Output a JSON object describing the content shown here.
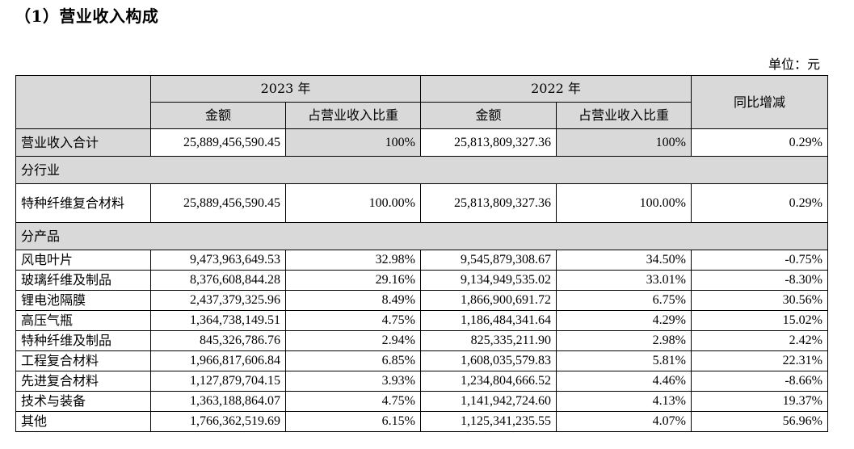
{
  "heading": "（1）营业收入构成",
  "unit_label": "单位：元",
  "header": {
    "year_2023": "2023 年",
    "year_2022": "2022 年",
    "amount": "金额",
    "ratio": "占营业收入比重",
    "yoy": "同比增减"
  },
  "total": {
    "label": "营业收入合计",
    "amount_2023": "25,889,456,590.45",
    "ratio_2023": "100%",
    "amount_2022": "25,813,809,327.36",
    "ratio_2022": "100%",
    "yoy": "0.29%"
  },
  "section_industry": "分行业",
  "industry_rows": [
    {
      "label": "特种纤维复合材料",
      "amount_2023": "25,889,456,590.45",
      "ratio_2023": "100.00%",
      "amount_2022": "25,813,809,327.36",
      "ratio_2022": "100.00%",
      "yoy": "0.29%"
    }
  ],
  "section_product": "分产品",
  "product_rows": [
    {
      "label": "风电叶片",
      "amount_2023": "9,473,963,649.53",
      "ratio_2023": "32.98%",
      "amount_2022": "9,545,879,308.67",
      "ratio_2022": "34.50%",
      "yoy": "-0.75%"
    },
    {
      "label": "玻璃纤维及制品",
      "amount_2023": "8,376,608,844.28",
      "ratio_2023": "29.16%",
      "amount_2022": "9,134,949,535.02",
      "ratio_2022": "33.01%",
      "yoy": "-8.30%"
    },
    {
      "label": "锂电池隔膜",
      "amount_2023": "2,437,379,325.96",
      "ratio_2023": "8.49%",
      "amount_2022": "1,866,900,691.72",
      "ratio_2022": "6.75%",
      "yoy": "30.56%"
    },
    {
      "label": "高压气瓶",
      "amount_2023": "1,364,738,149.51",
      "ratio_2023": "4.75%",
      "amount_2022": "1,186,484,341.64",
      "ratio_2022": "4.29%",
      "yoy": "15.02%"
    },
    {
      "label": "特种纤维及制品",
      "amount_2023": "845,326,786.76",
      "ratio_2023": "2.94%",
      "amount_2022": "825,335,211.90",
      "ratio_2022": "2.98%",
      "yoy": "2.42%"
    },
    {
      "label": "工程复合材料",
      "amount_2023": "1,966,817,606.84",
      "ratio_2023": "6.85%",
      "amount_2022": "1,608,035,579.83",
      "ratio_2022": "5.81%",
      "yoy": "22.31%"
    },
    {
      "label": "先进复合材料",
      "amount_2023": "1,127,879,704.15",
      "ratio_2023": "3.93%",
      "amount_2022": "1,234,804,666.52",
      "ratio_2022": "4.46%",
      "yoy": "-8.66%"
    },
    {
      "label": "技术与装备",
      "amount_2023": "1,363,188,864.07",
      "ratio_2023": "4.75%",
      "amount_2022": "1,141,942,724.60",
      "ratio_2022": "4.13%",
      "yoy": "19.37%"
    },
    {
      "label": "其他",
      "amount_2023": "1,766,362,519.69",
      "ratio_2023": "6.15%",
      "amount_2022": "1,125,341,235.55",
      "ratio_2022": "4.07%",
      "yoy": "56.96%"
    }
  ]
}
